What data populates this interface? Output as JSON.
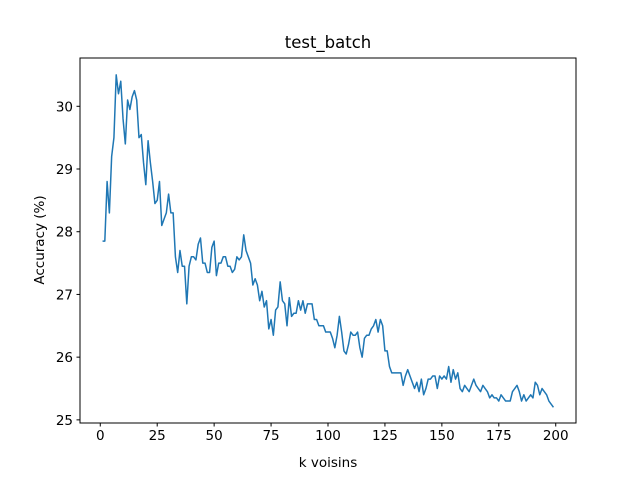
{
  "chart_data": {
    "type": "line",
    "title": "test_batch",
    "x_label": "k voisins",
    "y_label": "Accuracy (%)",
    "x": [
      1,
      2,
      3,
      4,
      5,
      6,
      7,
      8,
      9,
      10,
      11,
      12,
      13,
      14,
      15,
      16,
      17,
      18,
      19,
      20,
      21,
      22,
      23,
      24,
      25,
      26,
      27,
      28,
      29,
      30,
      31,
      32,
      33,
      34,
      35,
      36,
      37,
      38,
      39,
      40,
      41,
      42,
      43,
      44,
      45,
      46,
      47,
      48,
      49,
      50,
      51,
      52,
      53,
      54,
      55,
      56,
      57,
      58,
      59,
      60,
      61,
      62,
      63,
      64,
      65,
      66,
      67,
      68,
      69,
      70,
      71,
      72,
      73,
      74,
      75,
      76,
      77,
      78,
      79,
      80,
      81,
      82,
      83,
      84,
      85,
      86,
      87,
      88,
      89,
      90,
      91,
      92,
      93,
      94,
      95,
      96,
      97,
      98,
      99,
      100,
      101,
      102,
      103,
      104,
      105,
      106,
      107,
      108,
      109,
      110,
      111,
      112,
      113,
      114,
      115,
      116,
      117,
      118,
      119,
      120,
      121,
      122,
      123,
      124,
      125,
      126,
      127,
      128,
      129,
      130,
      131,
      132,
      133,
      134,
      135,
      136,
      137,
      138,
      139,
      140,
      141,
      142,
      143,
      144,
      145,
      146,
      147,
      148,
      149,
      150,
      151,
      152,
      153,
      154,
      155,
      156,
      157,
      158,
      159,
      160,
      161,
      162,
      163,
      164,
      165,
      166,
      167,
      168,
      169,
      170,
      171,
      172,
      173,
      174,
      175,
      176,
      177,
      178,
      179,
      180,
      181,
      182,
      183,
      184,
      185,
      186,
      187,
      188,
      189,
      190,
      191,
      192,
      193,
      194,
      195,
      196,
      197,
      198,
      199
    ],
    "series": [
      {
        "color": "#1f77b4",
        "values": [
          27.85,
          27.85,
          28.8,
          28.3,
          29.2,
          29.5,
          30.5,
          30.2,
          30.4,
          29.8,
          29.4,
          30.1,
          29.95,
          30.15,
          30.25,
          30.1,
          29.5,
          29.55,
          29.1,
          28.75,
          29.45,
          29.1,
          28.8,
          28.45,
          28.5,
          28.8,
          28.1,
          28.2,
          28.3,
          28.6,
          28.3,
          28.3,
          27.6,
          27.35,
          27.7,
          27.45,
          27.45,
          26.85,
          27.45,
          27.6,
          27.6,
          27.55,
          27.8,
          27.9,
          27.5,
          27.5,
          27.35,
          27.35,
          27.75,
          27.85,
          27.3,
          27.5,
          27.5,
          27.6,
          27.6,
          27.45,
          27.45,
          27.35,
          27.4,
          27.6,
          27.55,
          27.6,
          27.95,
          27.7,
          27.6,
          27.5,
          27.15,
          27.25,
          27.15,
          26.9,
          27.05,
          26.8,
          26.9,
          26.45,
          26.6,
          26.35,
          26.75,
          26.8,
          27.2,
          26.9,
          26.85,
          26.5,
          26.95,
          26.65,
          26.7,
          26.7,
          26.9,
          26.75,
          26.9,
          26.7,
          26.85,
          26.85,
          26.85,
          26.6,
          26.6,
          26.5,
          26.5,
          26.5,
          26.4,
          26.4,
          26.4,
          26.3,
          26.15,
          26.35,
          26.65,
          26.4,
          26.1,
          26.05,
          26.2,
          26.4,
          26.35,
          26.35,
          26.4,
          26.15,
          26.0,
          26.3,
          26.35,
          26.35,
          26.45,
          26.5,
          26.6,
          26.4,
          26.6,
          26.5,
          26.1,
          26.1,
          25.85,
          25.75,
          25.75,
          25.75,
          25.75,
          25.75,
          25.55,
          25.7,
          25.8,
          25.7,
          25.6,
          25.5,
          25.6,
          25.45,
          25.65,
          25.4,
          25.5,
          25.65,
          25.65,
          25.7,
          25.7,
          25.5,
          25.7,
          25.65,
          25.7,
          25.65,
          25.85,
          25.6,
          25.8,
          25.65,
          25.75,
          25.5,
          25.45,
          25.55,
          25.5,
          25.45,
          25.55,
          25.65,
          25.55,
          25.5,
          25.45,
          25.55,
          25.5,
          25.45,
          25.35,
          25.4,
          25.35,
          25.35,
          25.3,
          25.4,
          25.35,
          25.3,
          25.3,
          25.3,
          25.45,
          25.5,
          25.55,
          25.45,
          25.3,
          25.4,
          25.3,
          25.35,
          25.4,
          25.35,
          25.6,
          25.55,
          25.4,
          25.5,
          25.45,
          25.4,
          25.3,
          25.25,
          25.2
        ]
      }
    ],
    "xlim": [
      -8.9,
      208.9
    ],
    "ylim": [
      24.95,
      30.77
    ],
    "xticks": [
      0,
      25,
      50,
      75,
      100,
      125,
      150,
      175,
      200
    ],
    "yticks": [
      25,
      26,
      27,
      28,
      29,
      30
    ]
  }
}
